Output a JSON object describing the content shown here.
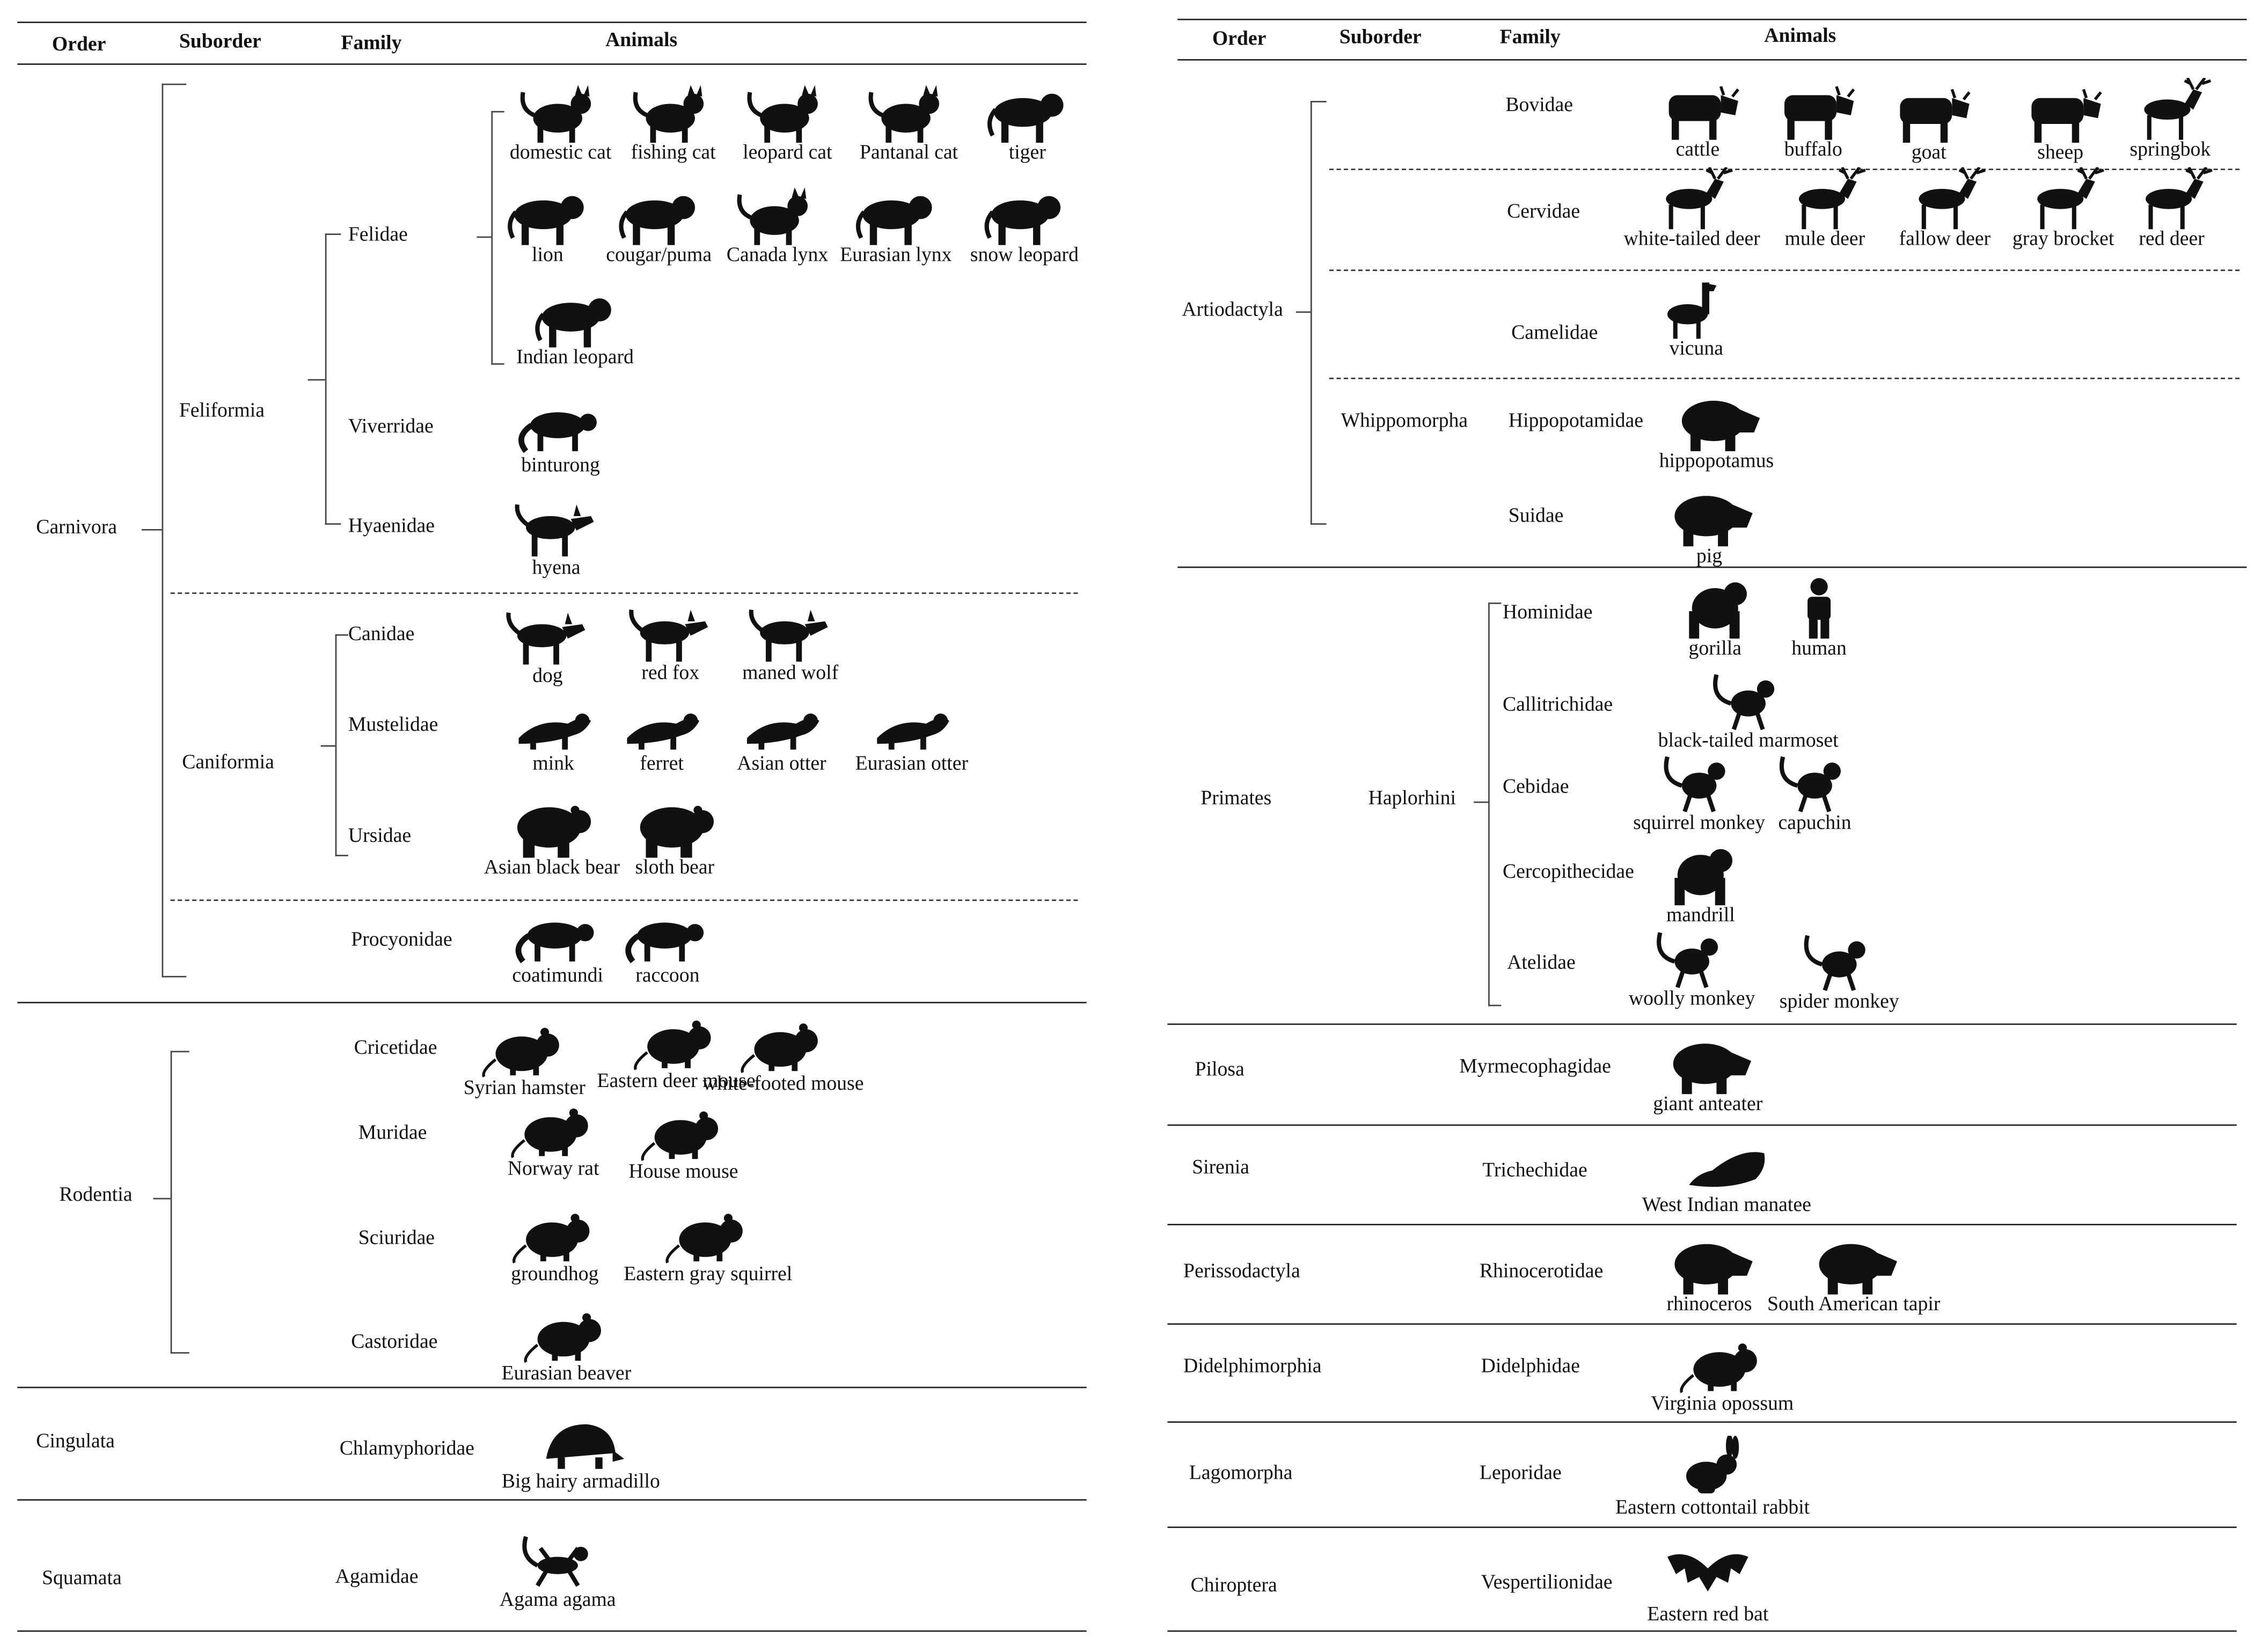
{
  "headers": {
    "order": "Order",
    "suborder": "Suborder",
    "family": "Family",
    "animals": "Animals"
  },
  "left": {
    "orders": {
      "carnivora": "Carnivora",
      "rodentia": "Rodentia",
      "cingulata": "Cingulata",
      "squamata": "Squamata"
    },
    "suborders": {
      "feliformia": "Feliformia",
      "caniformia": "Caniformia"
    },
    "families": {
      "felidae": "Felidae",
      "viverridae": "Viverridae",
      "hyaenidae": "Hyaenidae",
      "canidae": "Canidae",
      "mustelidae": "Mustelidae",
      "ursidae": "Ursidae",
      "procyonidae": "Procyonidae",
      "cricetidae": "Cricetidae",
      "muridae": "Muridae",
      "sciuridae": "Sciuridae",
      "castoridae": "Castoridae",
      "chlamyphoridae": "Chlamyphoridae",
      "agamidae": "Agamidae"
    },
    "animals": [
      "domestic cat",
      "fishing cat",
      "leopard cat",
      "Pantanal cat",
      "tiger",
      "lion",
      "cougar/puma",
      "Canada lynx",
      "Eurasian lynx",
      "snow leopard",
      "Indian leopard",
      "binturong",
      "hyena",
      "dog",
      "red fox",
      "maned wolf",
      "mink",
      "ferret",
      "Asian otter",
      "Eurasian otter",
      "Asian black bear",
      "sloth bear",
      "coatimundi",
      "raccoon",
      "Syrian hamster",
      "Eastern deer mouse",
      "white-footed mouse",
      "Norway rat",
      "House mouse",
      "groundhog",
      "Eastern gray squirrel",
      "Eurasian beaver",
      "Big hairy armadillo",
      "Agama agama"
    ]
  },
  "right": {
    "orders": {
      "artiodactyla": "Artiodactyla",
      "primates": "Primates",
      "pilosa": "Pilosa",
      "sirenia": "Sirenia",
      "perissodactyla": "Perissodactyla",
      "didelphimorphia": "Didelphimorphia",
      "lagomorpha": "Lagomorpha",
      "chiroptera": "Chiroptera"
    },
    "suborders": {
      "whippomorpha": "Whippomorpha",
      "haplorhini": "Haplorhini"
    },
    "families": {
      "bovidae": "Bovidae",
      "cervidae": "Cervidae",
      "camelidae": "Camelidae",
      "hippopotamidae": "Hippopotamidae",
      "suidae": "Suidae",
      "hominidae": "Hominidae",
      "callitrichidae": "Callitrichidae",
      "cebidae": "Cebidae",
      "cercopithecidae": "Cercopithecidae",
      "atelidae": "Atelidae",
      "myrmecophagidae": "Myrmecophagidae",
      "trichechidae": "Trichechidae",
      "rhinocerotidae": "Rhinocerotidae",
      "didelphidae": "Didelphidae",
      "leporidae": "Leporidae",
      "vespertilionidae": "Vespertilionidae"
    },
    "animals": [
      "cattle",
      "buffalo",
      "goat",
      "sheep",
      "springbok",
      "white-tailed deer",
      "mule deer",
      "fallow deer",
      "gray brocket",
      "red deer",
      "vicuna",
      "hippopotamus",
      "pig",
      "gorilla",
      "human",
      "black-tailed marmoset",
      "squirrel monkey",
      "capuchin",
      "mandrill",
      "woolly monkey",
      "spider monkey",
      "giant anteater",
      "West Indian manatee",
      "rhinoceros",
      "South American tapir",
      "Virginia opossum",
      "Eastern cottontail rabbit",
      "Eastern red bat"
    ]
  },
  "icon_color": "#111111"
}
